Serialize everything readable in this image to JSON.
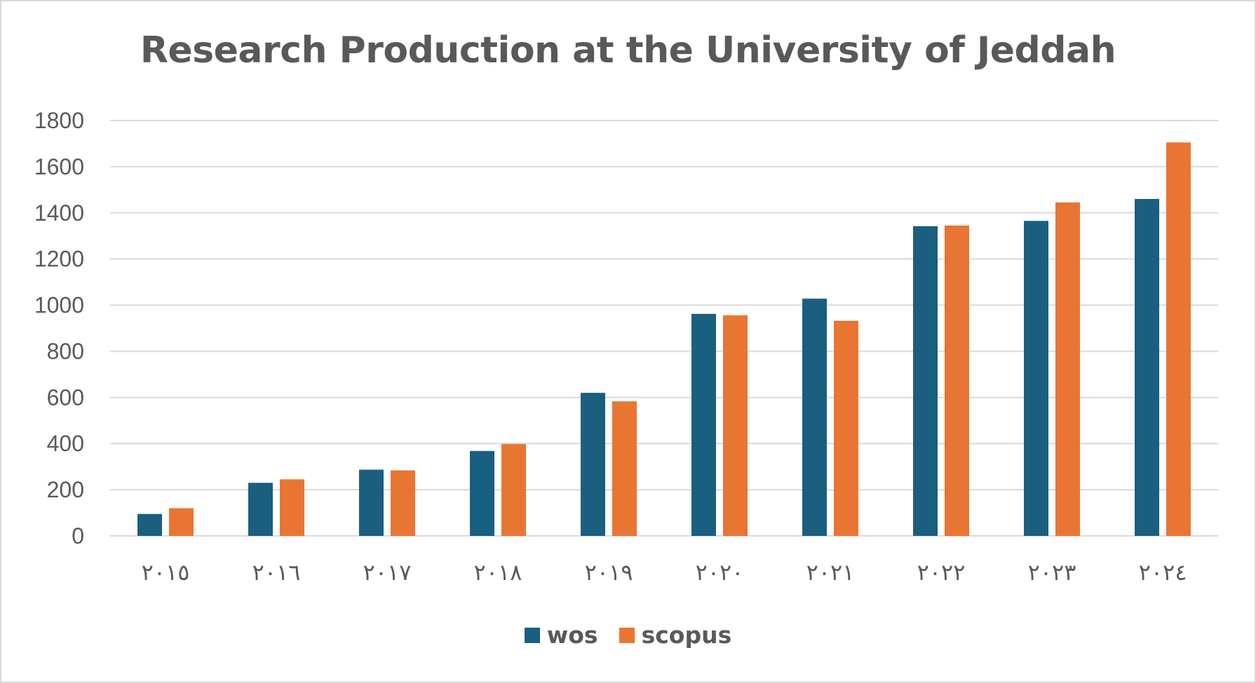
{
  "chart_data": {
    "type": "bar",
    "title": "Research Production at the University of Jeddah",
    "xlabel": "",
    "ylabel": "",
    "ylim": [
      0,
      1800
    ],
    "yticks": [
      "0",
      "200",
      "400",
      "600",
      "800",
      "1000",
      "1200",
      "1400",
      "1600",
      "1800"
    ],
    "categories": [
      "٢٠١٥",
      "٢٠١٦",
      "٢٠١٧",
      "٢٠١٨",
      "٢٠١٩",
      "٢٠٢٠",
      "٢٠٢١",
      "٢٠٢٢",
      "٢٠٢٣",
      "٢٠٢٤"
    ],
    "series": [
      {
        "name": "wos",
        "color": "#1a5f80",
        "values": [
          95,
          230,
          287,
          368,
          620,
          962,
          1028,
          1342,
          1365,
          1460
        ]
      },
      {
        "name": "scopus",
        "color": "#e97533",
        "values": [
          120,
          245,
          284,
          398,
          583,
          956,
          932,
          1345,
          1445,
          1705
        ]
      }
    ],
    "grid": true,
    "legend": "bottom-center"
  }
}
